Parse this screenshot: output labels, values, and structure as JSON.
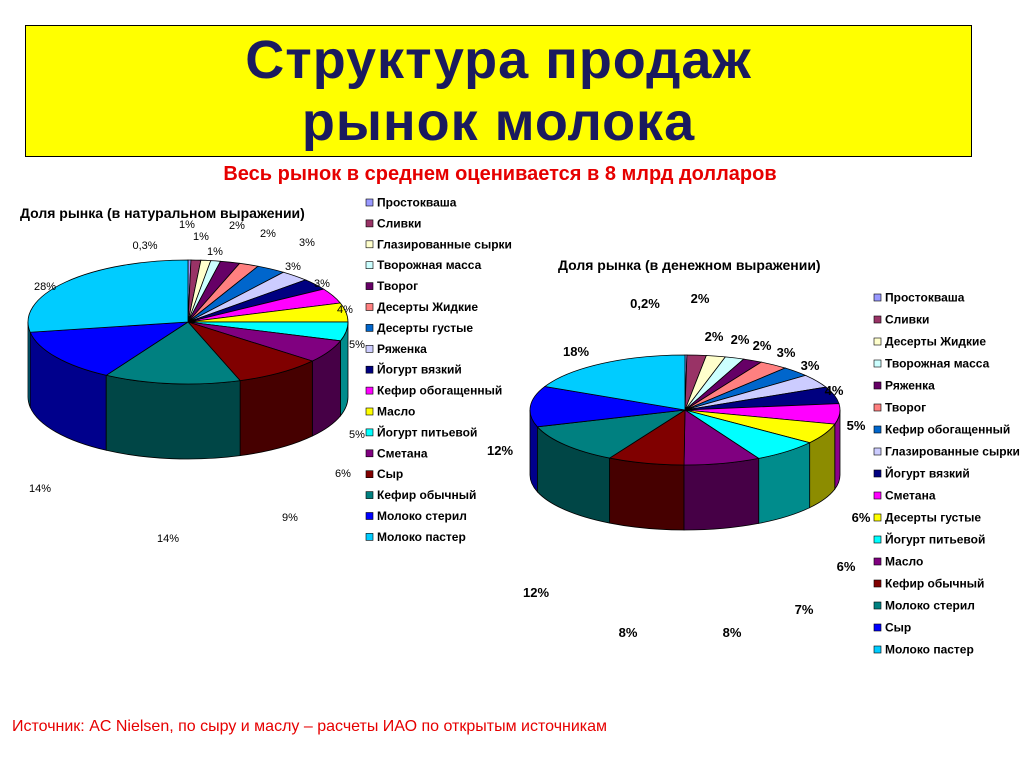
{
  "header": {
    "title_line1": "Структура продаж",
    "title_line2": "рынок молока",
    "subtitle": "Весь рынок в среднем оценивается в 8 млрд долларов"
  },
  "footer": {
    "source": "Источник: AC Nielsen, по сыру и маслу – расчеты ИАО по открытым источникам"
  },
  "colors": {
    "title_bg": "#ffff00",
    "title_text": "#1a1a5e",
    "accent_red": "#e60000"
  },
  "chart_data": [
    {
      "type": "pie",
      "title": "Доля рынка (в натуральном выражении)",
      "legend_position": "right",
      "categories": [
        "Простокваша",
        "Сливки",
        "Глазированные сырки",
        "Творожная масса",
        "Творог",
        "Десерты Жидкие",
        "Десерты густые",
        "Ряженка",
        "Йогурт вязкий",
        "Кефир обогащенный",
        "Масло",
        "Йогурт питьевой",
        "Сметана",
        "Сыр",
        "Кефир обычный",
        "Молоко стерил",
        "Молоко пастер"
      ],
      "values": [
        0.3,
        1,
        1,
        1,
        2,
        2,
        3,
        3,
        3,
        4,
        5,
        5,
        6,
        9,
        14,
        14,
        28
      ],
      "labels": [
        "0,3%",
        "1%",
        "1%",
        "1%",
        "2%",
        "2%",
        "3%",
        "3%",
        "3%",
        "4%",
        "5%",
        "5%",
        "6%",
        "9%",
        "14%",
        "14%",
        "28%"
      ],
      "colors": [
        "#9999ff",
        "#993366",
        "#ffffcc",
        "#ccffff",
        "#660066",
        "#ff8080",
        "#0066cc",
        "#ccccff",
        "#000080",
        "#ff00ff",
        "#ffff00",
        "#00ffff",
        "#800080",
        "#800000",
        "#008080",
        "#0000ff",
        "#00ccff"
      ]
    },
    {
      "type": "pie",
      "title": "Доля рынка (в денежном выражении)",
      "legend_position": "right",
      "categories": [
        "Простокваша",
        "Сливки",
        "Десерты Жидкие",
        "Творожная масса",
        "Ряженка",
        "Творог",
        "Кефир обогащенный",
        "Глазированные сырки",
        "Йогурт вязкий",
        "Сметана",
        "Десерты густые",
        "Йогурт питьевой",
        "Масло",
        "Кефир обычный",
        "Молоко стерил",
        "Сыр",
        "Молоко пастер"
      ],
      "values": [
        0.2,
        2,
        2,
        2,
        2,
        3,
        3,
        4,
        5,
        6,
        6,
        7,
        8,
        8,
        12,
        12,
        18
      ],
      "labels": [
        "0,2%",
        "2%",
        "2%",
        "2%",
        "2%",
        "3%",
        "3%",
        "4%",
        "5%",
        "6%",
        "6%",
        "7%",
        "8%",
        "8%",
        "12%",
        "12%",
        "18%"
      ],
      "colors": [
        "#9999ff",
        "#993366",
        "#ffffcc",
        "#ccffff",
        "#660066",
        "#ff8080",
        "#0066cc",
        "#ccccff",
        "#000080",
        "#ff00ff",
        "#ffff00",
        "#00ffff",
        "#800080",
        "#800000",
        "#008080",
        "#0000ff",
        "#00ccff"
      ]
    }
  ]
}
